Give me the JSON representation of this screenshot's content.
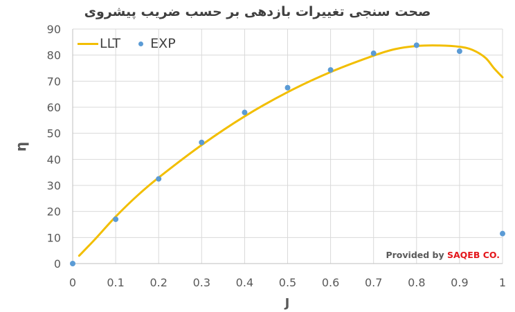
{
  "chart_data": {
    "type": "scatter",
    "title": "صحت سنجی تغییرات بازدهی بر حسب ضریب پیشروی",
    "xlabel": "J",
    "ylabel": "η",
    "xlim": [
      0,
      1
    ],
    "ylim": [
      0,
      90
    ],
    "x_ticks": [
      "0",
      "0.1",
      "0.2",
      "0.3",
      "0.4",
      "0.5",
      "0.6",
      "0.7",
      "0.8",
      "0.9",
      "1"
    ],
    "y_ticks": [
      "0",
      "10",
      "20",
      "30",
      "40",
      "50",
      "60",
      "70",
      "80",
      "90"
    ],
    "grid": true,
    "legend_position": "top-left",
    "series": [
      {
        "name": "LLT",
        "kind": "line",
        "color": "#f2be00",
        "x": [
          0.015,
          0.05,
          0.1,
          0.15,
          0.2,
          0.3,
          0.4,
          0.5,
          0.6,
          0.7,
          0.75,
          0.8,
          0.85,
          0.9,
          0.93,
          0.96,
          0.98,
          1.0
        ],
        "y": [
          3.0,
          9.0,
          18.0,
          26.0,
          33.0,
          45.5,
          56.5,
          65.8,
          73.5,
          79.8,
          82.3,
          83.5,
          83.7,
          83.2,
          82.0,
          79.0,
          75.0,
          71.5
        ]
      },
      {
        "name": "EXP",
        "kind": "scatter",
        "color": "#5b9bd5",
        "x": [
          0,
          0.1,
          0.2,
          0.3,
          0.4,
          0.5,
          0.6,
          0.7,
          0.8,
          0.9,
          1.0
        ],
        "y": [
          0,
          17,
          32.5,
          46.5,
          58,
          67.5,
          74.3,
          80.7,
          83.8,
          81.5,
          11.5
        ]
      }
    ]
  },
  "credit": {
    "prefix": "Provided by ",
    "brand": "SAQEB CO."
  }
}
